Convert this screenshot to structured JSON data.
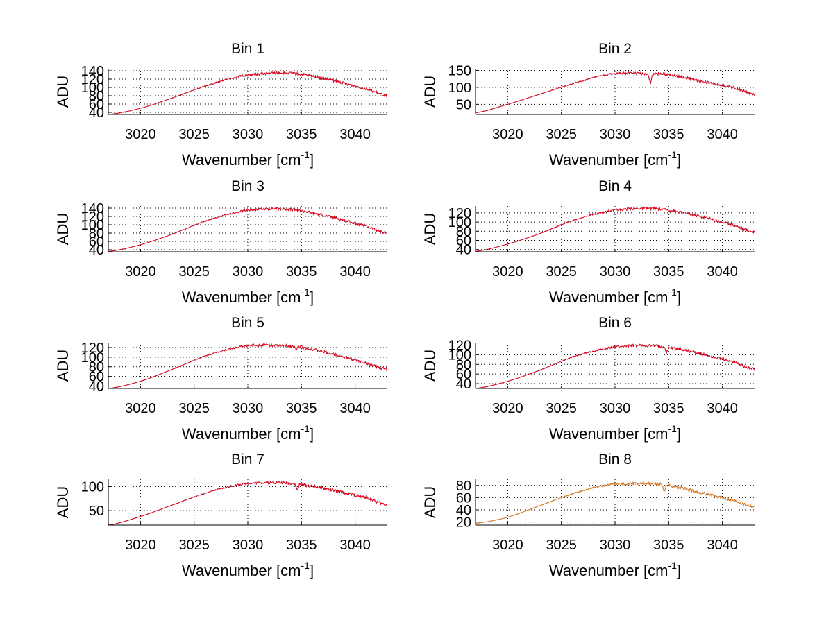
{
  "chart_data": [
    {
      "type": "line",
      "title": "Bin 1",
      "xlabel": "Wavenumber [cm",
      "xlabel_sup": "-1",
      "xlabel_suffix": "]",
      "ylabel": "ADU",
      "xlim": [
        3017,
        3043
      ],
      "ylim": [
        35,
        145
      ],
      "xticks": [
        3020,
        3025,
        3030,
        3035,
        3040
      ],
      "yticks": [
        40,
        60,
        80,
        100,
        120,
        140
      ],
      "grid": true,
      "series": [
        {
          "color": "#ff0000"
        }
      ],
      "profile": {
        "x": [
          3017,
          3020,
          3023,
          3026,
          3029,
          3031,
          3033,
          3035,
          3038,
          3041,
          3043
        ],
        "y": [
          35,
          50,
          75,
          103,
          125,
          132,
          135,
          131,
          116,
          97,
          80
        ]
      },
      "dip": null
    },
    {
      "type": "line",
      "title": "Bin 2",
      "xlabel": "Wavenumber [cm",
      "xlabel_sup": "-1",
      "xlabel_suffix": "]",
      "ylabel": "ADU",
      "xlim": [
        3017,
        3043
      ],
      "ylim": [
        20,
        155
      ],
      "xticks": [
        3020,
        3025,
        3030,
        3035,
        3040
      ],
      "yticks": [
        50,
        100,
        150
      ],
      "grid": true,
      "series": [
        {
          "color": "#ff0000"
        }
      ],
      "profile": {
        "x": [
          3017,
          3020,
          3023,
          3026,
          3029,
          3031,
          3033,
          3035,
          3038,
          3041,
          3043
        ],
        "y": [
          25,
          50,
          80,
          110,
          135,
          142,
          140,
          138,
          118,
          100,
          80
        ]
      },
      "dip": {
        "x": 3033.3,
        "depth": 28
      }
    },
    {
      "type": "line",
      "title": "Bin 3",
      "xlabel": "Wavenumber [cm",
      "xlabel_sup": "-1",
      "xlabel_suffix": "]",
      "ylabel": "ADU",
      "xlim": [
        3017,
        3043
      ],
      "ylim": [
        35,
        145
      ],
      "xticks": [
        3020,
        3025,
        3030,
        3035,
        3040
      ],
      "yticks": [
        40,
        60,
        80,
        100,
        120,
        140
      ],
      "grid": true,
      "series": [
        {
          "color": "#ff0000"
        }
      ],
      "profile": {
        "x": [
          3017,
          3020,
          3023,
          3026,
          3029,
          3031,
          3033,
          3035,
          3038,
          3041,
          3043
        ],
        "y": [
          36,
          52,
          78,
          108,
          130,
          137,
          138,
          133,
          117,
          97,
          80
        ]
      },
      "dip": null
    },
    {
      "type": "line",
      "title": "Bin 4",
      "xlabel": "Wavenumber [cm",
      "xlabel_sup": "-1",
      "xlabel_suffix": "]",
      "ylabel": "ADU",
      "xlim": [
        3017,
        3043
      ],
      "ylim": [
        35,
        135
      ],
      "xticks": [
        3020,
        3025,
        3030,
        3035,
        3040
      ],
      "yticks": [
        40,
        60,
        80,
        100,
        120
      ],
      "grid": true,
      "series": [
        {
          "color": "#ff0000"
        }
      ],
      "profile": {
        "x": [
          3017,
          3020,
          3023,
          3026,
          3029,
          3031,
          3033,
          3035,
          3038,
          3041,
          3043
        ],
        "y": [
          36,
          52,
          75,
          103,
          122,
          128,
          130,
          126,
          112,
          94,
          78
        ]
      },
      "dip": null
    },
    {
      "type": "line",
      "title": "Bin 5",
      "xlabel": "Wavenumber [cm",
      "xlabel_sup": "-1",
      "xlabel_suffix": "]",
      "ylabel": "ADU",
      "xlim": [
        3017,
        3043
      ],
      "ylim": [
        35,
        130
      ],
      "xticks": [
        3020,
        3025,
        3030,
        3035,
        3040
      ],
      "yticks": [
        40,
        60,
        80,
        100,
        120
      ],
      "grid": true,
      "series": [
        {
          "color": "#ff0000"
        }
      ],
      "profile": {
        "x": [
          3017,
          3020,
          3023,
          3026,
          3029,
          3031,
          3033,
          3035,
          3038,
          3041,
          3043
        ],
        "y": [
          35,
          50,
          75,
          102,
          120,
          125,
          124,
          120,
          106,
          88,
          75
        ]
      },
      "dip": {
        "x": 3034.5,
        "depth": 6
      }
    },
    {
      "type": "line",
      "title": "Bin 6",
      "xlabel": "Wavenumber [cm",
      "xlabel_sup": "-1",
      "xlabel_suffix": "]",
      "ylabel": "ADU",
      "xlim": [
        3017,
        3043
      ],
      "ylim": [
        30,
        125
      ],
      "xticks": [
        3020,
        3025,
        3030,
        3035,
        3040
      ],
      "yticks": [
        40,
        60,
        80,
        100,
        120
      ],
      "grid": true,
      "series": [
        {
          "color": "#ff0000"
        }
      ],
      "profile": {
        "x": [
          3017,
          3020,
          3023,
          3026,
          3029,
          3031,
          3033,
          3035,
          3038,
          3041,
          3043
        ],
        "y": [
          30,
          45,
          68,
          95,
          112,
          118,
          119,
          115,
          102,
          85,
          70
        ]
      },
      "dip": {
        "x": 3034.8,
        "depth": 10
      }
    },
    {
      "type": "line",
      "title": "Bin 7",
      "xlabel": "Wavenumber [cm",
      "xlabel_sup": "-1",
      "xlabel_suffix": "]",
      "ylabel": "ADU",
      "xlim": [
        3017,
        3043
      ],
      "ylim": [
        20,
        115
      ],
      "xticks": [
        3020,
        3025,
        3030,
        3035,
        3040
      ],
      "yticks": [
        50,
        100
      ],
      "grid": true,
      "series": [
        {
          "color": "#ff0000"
        }
      ],
      "profile": {
        "x": [
          3017,
          3020,
          3023,
          3026,
          3029,
          3031,
          3033,
          3035,
          3038,
          3041,
          3043
        ],
        "y": [
          20,
          38,
          62,
          86,
          103,
          108,
          108,
          104,
          92,
          77,
          62
        ]
      },
      "dip": {
        "x": 3034.6,
        "depth": 12
      }
    },
    {
      "type": "line",
      "title": "Bin 8",
      "xlabel": "Wavenumber [cm",
      "xlabel_sup": "-1",
      "xlabel_suffix": "]",
      "ylabel": "ADU",
      "xlim": [
        3017,
        3043
      ],
      "ylim": [
        15,
        90
      ],
      "xticks": [
        3020,
        3025,
        3030,
        3035,
        3040
      ],
      "yticks": [
        20,
        40,
        60,
        80
      ],
      "grid": true,
      "series": [
        {
          "color": "#ff8800"
        }
      ],
      "profile": {
        "x": [
          3017,
          3020,
          3023,
          3026,
          3029,
          3031,
          3033,
          3035,
          3038,
          3041,
          3043
        ],
        "y": [
          18,
          28,
          47,
          66,
          80,
          83,
          83,
          80,
          68,
          56,
          45
        ]
      },
      "dip": {
        "x": 3034.6,
        "depth": 10
      }
    }
  ]
}
